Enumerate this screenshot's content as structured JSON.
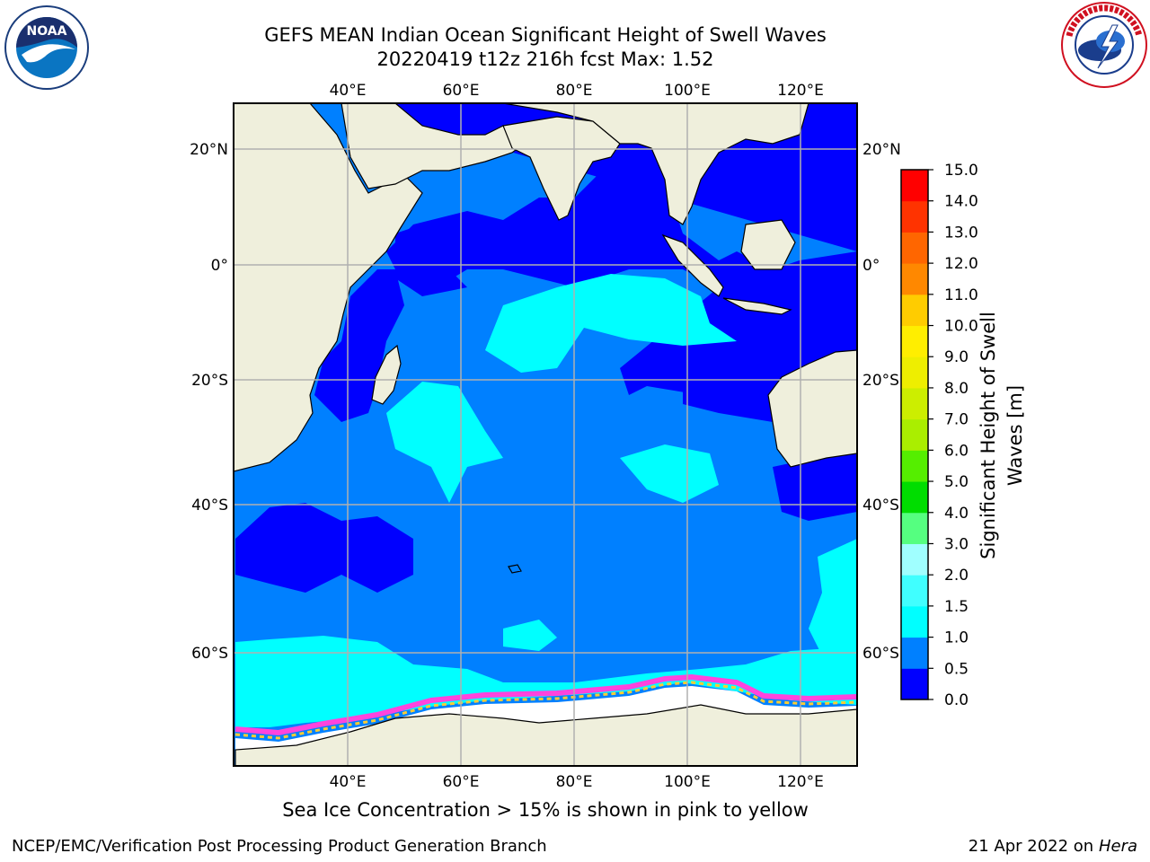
{
  "title_line1": "GEFS MEAN Indian Ocean Significant Height of Swell Waves",
  "title_line2": "20220419 t12z 216h fcst   Max: 1.52",
  "subtitle": "Sea Ice Concentration > 15% is shown in pink to yellow",
  "footer_left": "NCEP/EMC/Verification Post Processing Product Generation Branch",
  "footer_date": "21 Apr 2022 on ",
  "footer_host": "Hera",
  "logos": {
    "left": "noaa-logo",
    "right": "national-weather-service-logo"
  },
  "longitude_labels": [
    "40°E",
    "60°E",
    "80°E",
    "100°E",
    "120°E"
  ],
  "latitude_labels": [
    "20°N",
    "0°",
    "20°S",
    "40°S",
    "60°S"
  ],
  "colorbar": {
    "label_line1": "Significant Height of Swell",
    "label_line2": "Waves [m]",
    "ticks": [
      "0.0",
      "0.5",
      "1.0",
      "1.5",
      "2.0",
      "3.0",
      "4.0",
      "5.0",
      "6.0",
      "7.0",
      "8.0",
      "9.0",
      "10.0",
      "11.0",
      "12.0",
      "13.0",
      "14.0",
      "15.0"
    ],
    "colors": [
      "#0000ff",
      "#0080ff",
      "#00ffff",
      "#40ffff",
      "#a0ffff",
      "#55ff80",
      "#00dd00",
      "#55ee00",
      "#aaee00",
      "#ccee00",
      "#eeee00",
      "#ffee00",
      "#ffcc00",
      "#ff8800",
      "#ff6600",
      "#ff3300",
      "#ff0000"
    ]
  },
  "colors": {
    "land": "#efefdc",
    "ocean_low": "#0000ff",
    "ocean_mid": "#0080ff",
    "ocean_high": "#00ffff",
    "sea_ice_edge": "#ff44dd",
    "sea_ice_yellow": "#ffcc33",
    "grid": "#b0b0b0"
  }
}
